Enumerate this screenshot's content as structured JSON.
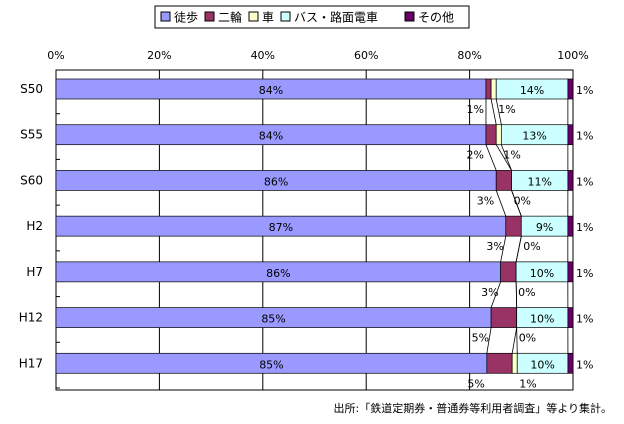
{
  "chart_data": {
    "type": "bar",
    "stacked": "percent",
    "orientation": "horizontal",
    "title": "",
    "xlabel": "",
    "ylabel": "",
    "xlim": [
      0,
      100
    ],
    "x_tick_labels": [
      "0%",
      "20%",
      "40%",
      "60%",
      "80%",
      "100%"
    ],
    "grid": true,
    "legend_position": "top",
    "categories": [
      "S50",
      "S55",
      "S60",
      "H2",
      "H7",
      "H12",
      "H17"
    ],
    "series": [
      {
        "name": "徒歩",
        "color": "#9999ff",
        "values": [
          84,
          84,
          86,
          87,
          86,
          85,
          85
        ],
        "labels": [
          "84%",
          "84%",
          "86%",
          "87%",
          "86%",
          "85%",
          "85%"
        ]
      },
      {
        "name": "二輪",
        "color": "#993366",
        "values": [
          1,
          2,
          3,
          3,
          3,
          5,
          5
        ],
        "labels": [
          "1%",
          "2%",
          "3%",
          "3%",
          "3%",
          "5%",
          "5%"
        ]
      },
      {
        "name": "車",
        "color": "#ffffcc",
        "values": [
          1,
          1,
          0,
          0,
          0,
          0,
          1
        ],
        "labels": [
          "1%",
          "1%",
          "0%",
          "0%",
          "0%",
          "0%",
          "1%"
        ]
      },
      {
        "name": "バス・路面電車",
        "color": "#ccffff",
        "values": [
          14,
          13,
          11,
          9,
          10,
          10,
          10
        ],
        "labels": [
          "14%",
          "13%",
          "11%",
          "9%",
          "10%",
          "10%",
          "10%"
        ]
      },
      {
        "name": "その他",
        "color": "#660066",
        "values": [
          1,
          1,
          1,
          1,
          1,
          1,
          1
        ],
        "labels": [
          "1%",
          "1%",
          "1%",
          "1%",
          "1%",
          "1%",
          "1%"
        ]
      }
    ],
    "source_note": "出所:「鉄道定期券・普通券等利用者調査」等より集計。"
  }
}
